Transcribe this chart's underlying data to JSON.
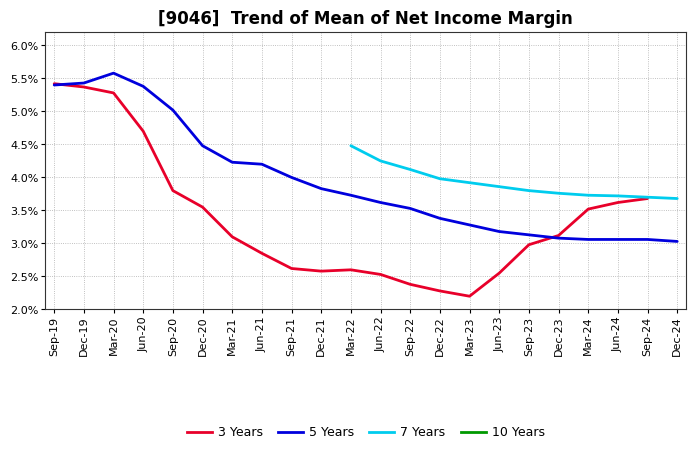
{
  "title": "[9046]  Trend of Mean of Net Income Margin",
  "x_labels": [
    "Sep-19",
    "Dec-19",
    "Mar-20",
    "Jun-20",
    "Sep-20",
    "Dec-20",
    "Mar-21",
    "Jun-21",
    "Sep-21",
    "Dec-21",
    "Mar-22",
    "Jun-22",
    "Sep-22",
    "Dec-22",
    "Mar-23",
    "Jun-23",
    "Sep-23",
    "Dec-23",
    "Mar-24",
    "Jun-24",
    "Sep-24",
    "Dec-24"
  ],
  "ylim": [
    0.02,
    0.062
  ],
  "yticks": [
    0.02,
    0.025,
    0.03,
    0.035,
    0.04,
    0.045,
    0.05,
    0.055,
    0.06
  ],
  "series_order": [
    "3 Years",
    "5 Years",
    "7 Years",
    "10 Years"
  ],
  "series": {
    "3 Years": {
      "color": "#e8002a",
      "linewidth": 2.0,
      "data_x": [
        0,
        1,
        2,
        3,
        4,
        5,
        6,
        7,
        8,
        9,
        10,
        11,
        12,
        13,
        14,
        15,
        16,
        17,
        18,
        19,
        20
      ],
      "data_y": [
        0.0542,
        0.0537,
        0.0528,
        0.047,
        0.038,
        0.0355,
        0.031,
        0.0285,
        0.0262,
        0.0258,
        0.026,
        0.0253,
        0.0238,
        0.0228,
        0.022,
        0.0255,
        0.0298,
        0.0312,
        0.0352,
        0.0362,
        0.0368
      ]
    },
    "5 Years": {
      "color": "#0000dd",
      "linewidth": 2.0,
      "data_x": [
        0,
        1,
        2,
        3,
        4,
        5,
        6,
        7,
        8,
        9,
        10,
        11,
        12,
        13,
        14,
        15,
        16,
        17,
        18,
        19,
        20,
        21
      ],
      "data_y": [
        0.054,
        0.0543,
        0.0558,
        0.0538,
        0.0502,
        0.0448,
        0.0423,
        0.042,
        0.04,
        0.0383,
        0.0373,
        0.0362,
        0.0353,
        0.0338,
        0.0328,
        0.0318,
        0.0313,
        0.0308,
        0.0306,
        0.0306,
        0.0306,
        0.0303
      ]
    },
    "7 Years": {
      "color": "#00ccee",
      "linewidth": 2.0,
      "data_x": [
        10,
        11,
        12,
        13,
        14,
        15,
        16,
        17,
        18,
        19,
        20,
        21
      ],
      "data_y": [
        0.0448,
        0.0425,
        0.0412,
        0.0398,
        0.0392,
        0.0386,
        0.038,
        0.0376,
        0.0373,
        0.0372,
        0.037,
        0.0368
      ]
    },
    "10 Years": {
      "color": "#009900",
      "linewidth": 2.0,
      "data_x": [],
      "data_y": []
    }
  },
  "legend_labels": [
    "3 Years",
    "5 Years",
    "7 Years",
    "10 Years"
  ],
  "legend_colors": [
    "#e8002a",
    "#0000dd",
    "#00ccee",
    "#009900"
  ],
  "background_color": "#ffffff",
  "grid_color": "#999999",
  "title_fontsize": 12,
  "tick_fontsize": 8,
  "ylabel_fontsize": 8
}
